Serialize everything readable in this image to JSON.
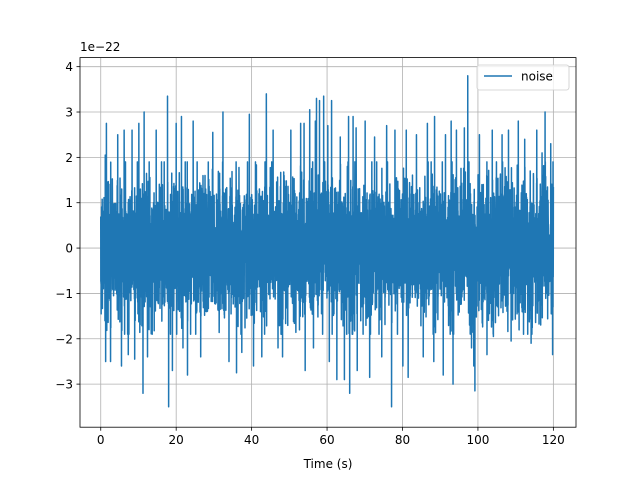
{
  "chart_data": {
    "type": "line",
    "title": "",
    "xlabel": "Time (s)",
    "ylabel": "",
    "y_offset_text": "1e−22",
    "xlim": [
      -5.5,
      126
    ],
    "ylim": [
      -3.95,
      4.2
    ],
    "x_ticks": [
      0,
      20,
      40,
      60,
      80,
      100,
      120
    ],
    "x_tick_labels": [
      "0",
      "20",
      "40",
      "60",
      "80",
      "100",
      "120"
    ],
    "y_ticks": [
      -3,
      -2,
      -1,
      0,
      1,
      2,
      3,
      4
    ],
    "y_tick_labels": [
      "−3",
      "−2",
      "−1",
      "0",
      "1",
      "2",
      "3",
      "4"
    ],
    "grid": true,
    "legend_position": "top-right",
    "series": [
      {
        "name": "noise",
        "color": "#1f77b4",
        "x_range": [
          0,
          120
        ],
        "noise_std": 0.75,
        "peaks": [
          {
            "x": 1.2,
            "y": 2.05
          },
          {
            "x": 1.3,
            "y": -2.5
          },
          {
            "x": 1.5,
            "y": 2.75
          },
          {
            "x": 2.6,
            "y": -2.5
          },
          {
            "x": 4.5,
            "y": 2.5
          },
          {
            "x": 5.5,
            "y": -2.6
          },
          {
            "x": 6.2,
            "y": 2.6
          },
          {
            "x": 7.3,
            "y": -2.35
          },
          {
            "x": 8.3,
            "y": 2.6
          },
          {
            "x": 9.0,
            "y": -2.45
          },
          {
            "x": 10.1,
            "y": 2.75
          },
          {
            "x": 11.2,
            "y": -3.2
          },
          {
            "x": 11.5,
            "y": 3.0
          },
          {
            "x": 12.4,
            "y": -2.4
          },
          {
            "x": 14.7,
            "y": 2.6
          },
          {
            "x": 17.7,
            "y": 3.35
          },
          {
            "x": 18.0,
            "y": -3.5
          },
          {
            "x": 19.0,
            "y": -2.7
          },
          {
            "x": 20.0,
            "y": 2.75
          },
          {
            "x": 21.4,
            "y": 2.9
          },
          {
            "x": 21.8,
            "y": -2.2
          },
          {
            "x": 23.0,
            "y": -2.8
          },
          {
            "x": 24.5,
            "y": 2.8
          },
          {
            "x": 26.5,
            "y": -2.4
          },
          {
            "x": 29.7,
            "y": 2.55
          },
          {
            "x": 32.4,
            "y": 3.0
          },
          {
            "x": 34.0,
            "y": -2.5
          },
          {
            "x": 36.0,
            "y": -2.75
          },
          {
            "x": 37.4,
            "y": -2.3
          },
          {
            "x": 39.4,
            "y": 2.95
          },
          {
            "x": 40.5,
            "y": -2.6
          },
          {
            "x": 42.7,
            "y": -2.4
          },
          {
            "x": 43.9,
            "y": 3.4
          },
          {
            "x": 45.7,
            "y": 2.6
          },
          {
            "x": 47.0,
            "y": -2.2
          },
          {
            "x": 48.2,
            "y": -2.4
          },
          {
            "x": 50.4,
            "y": 2.6
          },
          {
            "x": 53.0,
            "y": 2.75
          },
          {
            "x": 53.9,
            "y": 2.75
          },
          {
            "x": 54.2,
            "y": -2.7
          },
          {
            "x": 55.4,
            "y": 3.05
          },
          {
            "x": 56.4,
            "y": -2.2
          },
          {
            "x": 56.9,
            "y": 2.8
          },
          {
            "x": 57.2,
            "y": 3.3
          },
          {
            "x": 58.0,
            "y": 3.25
          },
          {
            "x": 59.1,
            "y": 3.35
          },
          {
            "x": 60.2,
            "y": 2.7
          },
          {
            "x": 60.6,
            "y": -2.5
          },
          {
            "x": 61.2,
            "y": 3.25
          },
          {
            "x": 62.6,
            "y": -2.9
          },
          {
            "x": 63.5,
            "y": 2.45
          },
          {
            "x": 64.6,
            "y": -2.9
          },
          {
            "x": 65.7,
            "y": 2.9
          },
          {
            "x": 66.0,
            "y": -3.2
          },
          {
            "x": 66.9,
            "y": 2.9
          },
          {
            "x": 67.7,
            "y": 2.65
          },
          {
            "x": 68.0,
            "y": -2.7
          },
          {
            "x": 70.1,
            "y": 2.8
          },
          {
            "x": 71.3,
            "y": -2.85
          },
          {
            "x": 72.6,
            "y": 2.45
          },
          {
            "x": 74.5,
            "y": -2.4
          },
          {
            "x": 75.8,
            "y": 2.7
          },
          {
            "x": 77.1,
            "y": -3.5
          },
          {
            "x": 78.0,
            "y": 2.6
          },
          {
            "x": 80.1,
            "y": -2.6
          },
          {
            "x": 81.0,
            "y": 2.6
          },
          {
            "x": 81.5,
            "y": -2.85
          },
          {
            "x": 83.7,
            "y": 2.5
          },
          {
            "x": 85.5,
            "y": -2.4
          },
          {
            "x": 86.6,
            "y": 2.75
          },
          {
            "x": 88.3,
            "y": -2.5
          },
          {
            "x": 88.5,
            "y": 2.9
          },
          {
            "x": 90.8,
            "y": -2.8
          },
          {
            "x": 91.4,
            "y": 2.5
          },
          {
            "x": 92.9,
            "y": 2.8
          },
          {
            "x": 93.4,
            "y": -3.0
          },
          {
            "x": 94.3,
            "y": 2.6
          },
          {
            "x": 96.4,
            "y": 2.65
          },
          {
            "x": 97.3,
            "y": 3.8
          },
          {
            "x": 98.3,
            "y": -2.2
          },
          {
            "x": 98.9,
            "y": -2.6
          },
          {
            "x": 99.2,
            "y": -3.15
          },
          {
            "x": 100.4,
            "y": 2.5
          },
          {
            "x": 102.4,
            "y": -2.35
          },
          {
            "x": 103.8,
            "y": 2.6
          },
          {
            "x": 104.1,
            "y": -1.95
          },
          {
            "x": 106.4,
            "y": 2.5
          },
          {
            "x": 108.1,
            "y": 2.6
          },
          {
            "x": 108.8,
            "y": -2.05
          },
          {
            "x": 110.7,
            "y": 2.8
          },
          {
            "x": 112.4,
            "y": 2.4
          },
          {
            "x": 114.1,
            "y": -2.1
          },
          {
            "x": 115.6,
            "y": 2.6
          },
          {
            "x": 117.0,
            "y": 2.1
          },
          {
            "x": 117.8,
            "y": 3.0
          },
          {
            "x": 119.3,
            "y": 2.3
          },
          {
            "x": 119.8,
            "y": -2.35
          }
        ]
      }
    ]
  }
}
